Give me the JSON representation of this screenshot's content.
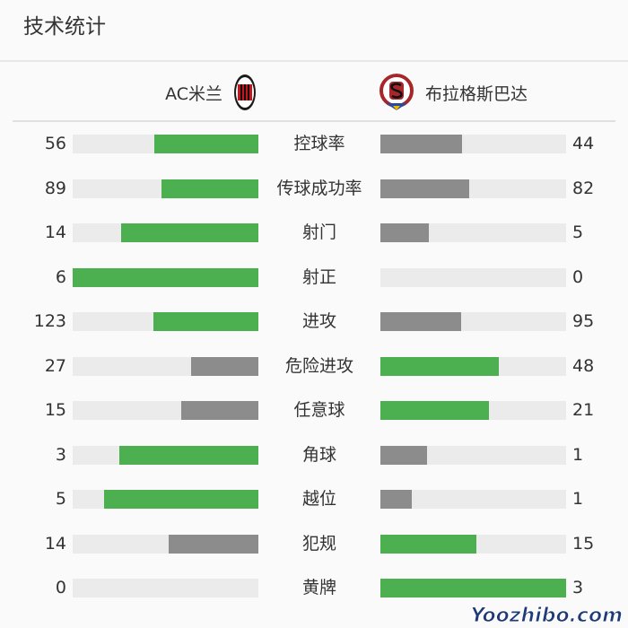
{
  "title": "技术统计",
  "home": {
    "name": "AC米兰",
    "logo": "ac-milan-crest"
  },
  "away": {
    "name": "布拉格斯巴达",
    "logo": "sparta-praha-crest"
  },
  "colors": {
    "leader": "#4caf50",
    "trailer": "#8c8c8c",
    "track": "#ebebeb"
  },
  "stats": [
    {
      "label": "控球率",
      "home": 56,
      "away": 44
    },
    {
      "label": "传球成功率",
      "home": 89,
      "away": 82
    },
    {
      "label": "射门",
      "home": 14,
      "away": 5
    },
    {
      "label": "射正",
      "home": 6,
      "away": 0
    },
    {
      "label": "进攻",
      "home": 123,
      "away": 95
    },
    {
      "label": "危险进攻",
      "home": 27,
      "away": 48
    },
    {
      "label": "任意球",
      "home": 15,
      "away": 21
    },
    {
      "label": "角球",
      "home": 3,
      "away": 1
    },
    {
      "label": "越位",
      "home": 5,
      "away": 1
    },
    {
      "label": "犯规",
      "home": 14,
      "away": 15
    },
    {
      "label": "黄牌",
      "home": 0,
      "away": 3
    }
  ],
  "watermark": "Yoozhibo.com"
}
